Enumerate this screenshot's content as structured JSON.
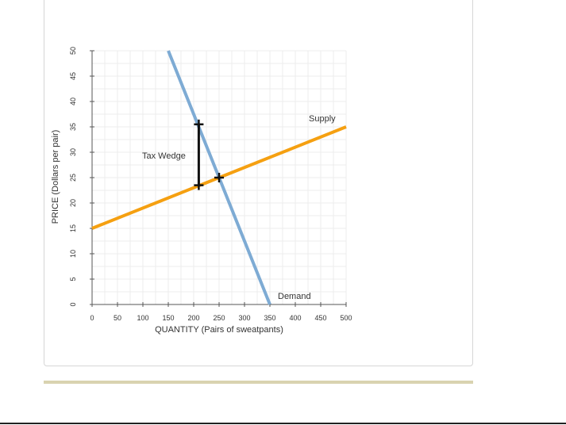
{
  "chart_data": {
    "type": "line",
    "title": "",
    "xlabel": "QUANTITY (Pairs of sweatpants)",
    "ylabel": "PRICE (Dollars per pair)",
    "xlim": [
      0,
      500
    ],
    "ylim": [
      0,
      50
    ],
    "x_ticks": [
      "0",
      "50",
      "100",
      "150",
      "200",
      "250",
      "300",
      "350",
      "400",
      "450",
      "500"
    ],
    "y_ticks": [
      "0",
      "5",
      "10",
      "15",
      "20",
      "25",
      "30",
      "35",
      "40",
      "45",
      "50"
    ],
    "x_tick_values": [
      0,
      50,
      100,
      150,
      200,
      250,
      300,
      350,
      400,
      450,
      500
    ],
    "y_tick_values": [
      0,
      5,
      10,
      15,
      20,
      25,
      30,
      35,
      40,
      45,
      50
    ],
    "grid": true,
    "series": [
      {
        "name": "Supply",
        "color": "#f5a011",
        "points": [
          [
            0,
            15
          ],
          [
            500,
            35
          ]
        ]
      },
      {
        "name": "Demand",
        "color": "#7eabd4",
        "points": [
          [
            150,
            50
          ],
          [
            350,
            0
          ]
        ]
      }
    ],
    "markers": [
      {
        "x": 210,
        "y": 35.5
      },
      {
        "x": 210,
        "y": 23.5
      },
      {
        "x": 250,
        "y": 25
      }
    ],
    "tax_wedge": {
      "label": "Tax Wedge",
      "x": 210,
      "y_low": 23.5,
      "y_high": 35.5
    },
    "annotations": {
      "supply_label": "Supply",
      "demand_label": "Demand"
    }
  }
}
